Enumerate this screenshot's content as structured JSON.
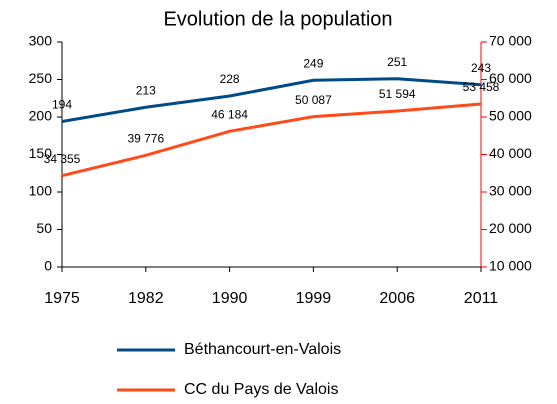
{
  "chart_data": {
    "type": "line",
    "title": "Evolution de la population",
    "categories": [
      "1975",
      "1982",
      "1990",
      "1999",
      "2006",
      "2011"
    ],
    "series": [
      {
        "name": "Béthancourt-en-Valois",
        "color": "#004a86",
        "values": [
          194,
          213,
          228,
          249,
          251,
          243
        ]
      },
      {
        "name": "CC du Pays de Valois",
        "color": "#ff4a1a",
        "axis": "y2",
        "values": [
          34355,
          39776,
          46184,
          50087,
          51594,
          53458
        ],
        "value_labels": [
          "34 355",
          "39 776",
          "46 184",
          "50 087",
          "51 594",
          "53 458"
        ]
      }
    ],
    "ylim": [
      0,
      300
    ],
    "yticks": [
      0,
      50,
      100,
      150,
      200,
      250,
      300
    ],
    "y2lim": [
      10000,
      70000
    ],
    "y2ticks": [
      {
        "value": 10000,
        "label": "10 000"
      },
      {
        "value": 20000,
        "label": "20 000"
      },
      {
        "value": 30000,
        "label": "30 000"
      },
      {
        "value": 40000,
        "label": "40 000"
      },
      {
        "value": 50000,
        "label": "50 000"
      },
      {
        "value": 60000,
        "label": "60 000"
      },
      {
        "value": 70000,
        "label": "70 000"
      }
    ],
    "y2color": "#ff0000"
  }
}
